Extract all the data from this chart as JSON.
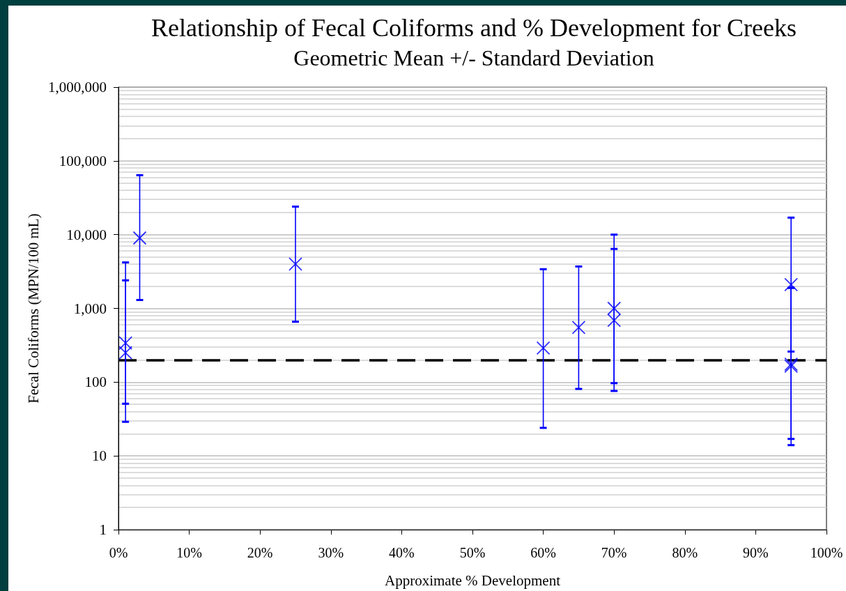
{
  "chart_data": {
    "type": "scatter",
    "title": "Relationship of Fecal Coliforms and % Development for Creeks",
    "subtitle": "Geometric Mean +/- Standard Deviation",
    "xlabel": "Approximate % Development",
    "ylabel": "Fecal Coliforms (MPN/100 mL)",
    "x": [
      1,
      1,
      3,
      25,
      60,
      65,
      70,
      70,
      95,
      95,
      95
    ],
    "values": [
      340,
      250,
      9000,
      4000,
      290,
      550,
      1000,
      690,
      2100,
      175,
      165
    ],
    "errors": [
      [
        29,
        4200
      ],
      [
        51,
        2400
      ],
      [
        1300,
        64000
      ],
      [
        660,
        24000
      ],
      [
        24,
        3400
      ],
      [
        81,
        3700
      ],
      [
        97,
        10000
      ],
      [
        76,
        6400
      ],
      [
        260,
        17000
      ],
      [
        17,
        1900
      ],
      [
        14,
        1900
      ]
    ],
    "color": "#0000ff",
    "marker": "cross",
    "log": true,
    "grid": "y",
    "xlim": [
      0,
      100
    ],
    "xticks": [
      {
        "value": 0,
        "label": "0%"
      },
      {
        "value": 10,
        "label": "10%"
      },
      {
        "value": 20,
        "label": "20%"
      },
      {
        "value": 30,
        "label": "30%"
      },
      {
        "value": 40,
        "label": "40%"
      },
      {
        "value": 50,
        "label": "50%"
      },
      {
        "value": 60,
        "label": "60%"
      },
      {
        "value": 70,
        "label": "70%"
      },
      {
        "value": 80,
        "label": "80%"
      },
      {
        "value": 90,
        "label": "90%"
      },
      {
        "value": 100,
        "label": "100%"
      }
    ],
    "ylim": [
      1,
      1000000
    ],
    "yticks": [
      1,
      10,
      100,
      {
        "value": 1000,
        "label": "1,000"
      },
      {
        "value": 10000,
        "label": "10,000"
      },
      {
        "value": 100000,
        "label": "100,000"
      },
      {
        "value": 1000000,
        "label": "1,000,000"
      }
    ],
    "ref_lines": [
      {
        "axis": "y",
        "value": 200,
        "color": "#000000",
        "line_style": "dashed"
      }
    ]
  }
}
